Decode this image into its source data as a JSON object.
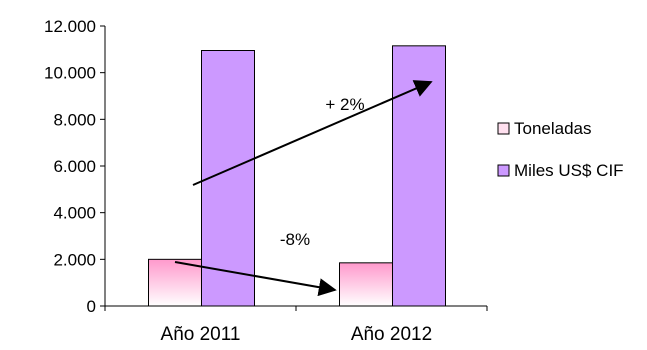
{
  "chart_data": {
    "type": "bar",
    "title": "",
    "xlabel": "",
    "ylabel": "",
    "categories": [
      "Año 2011",
      "Año 2012"
    ],
    "series": [
      {
        "name": "Toneladas",
        "values": [
          2000,
          1850
        ],
        "color": "#ff99cc"
      },
      {
        "name": "Miles US$ CIF",
        "values": [
          10950,
          11150
        ],
        "color": "#cc99ff"
      }
    ],
    "ylim": [
      0,
      12000
    ],
    "yticks": [
      0,
      2000,
      4000,
      6000,
      8000,
      10000,
      12000
    ],
    "ytick_labels": [
      "0",
      "2.000",
      "4.000",
      "6.000",
      "8.000",
      "10.000",
      "12.000"
    ],
    "grid": false,
    "legend_position": "right",
    "annotations": [
      {
        "text": "+ 2%",
        "series": "Miles US$ CIF",
        "from": "Año 2011",
        "to": "Año 2012"
      },
      {
        "text": "-8%",
        "series": "Toneladas",
        "from": "Año 2011",
        "to": "Año 2012"
      }
    ]
  }
}
